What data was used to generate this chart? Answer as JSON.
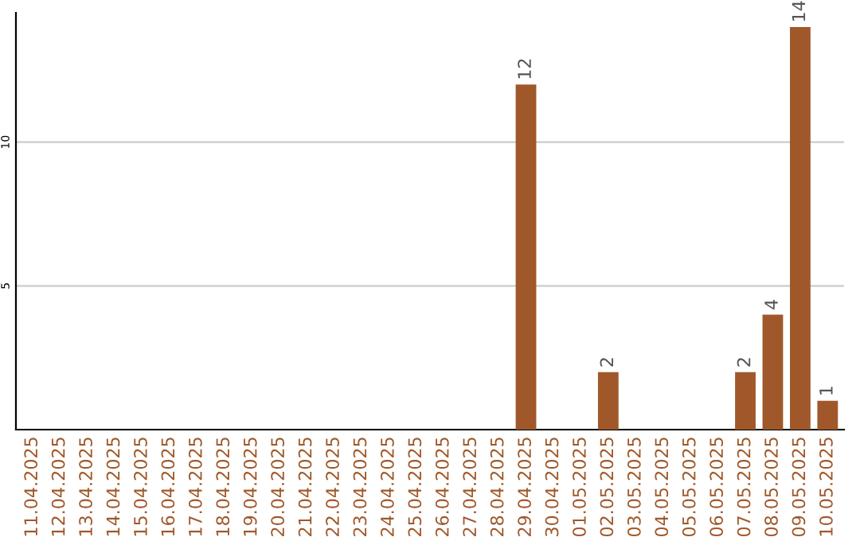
{
  "chart_data": {
    "type": "bar",
    "categories": [
      "11.04.2025",
      "12.04.2025",
      "13.04.2025",
      "14.04.2025",
      "15.04.2025",
      "16.04.2025",
      "17.04.2025",
      "18.04.2025",
      "19.04.2025",
      "20.04.2025",
      "21.04.2025",
      "22.04.2025",
      "23.04.2025",
      "24.04.2025",
      "25.04.2025",
      "26.04.2025",
      "27.04.2025",
      "28.04.2025",
      "29.04.2025",
      "30.04.2025",
      "01.05.2025",
      "02.05.2025",
      "03.05.2025",
      "04.05.2025",
      "05.05.2025",
      "06.05.2025",
      "07.05.2025",
      "08.05.2025",
      "09.05.2025",
      "10.05.2025"
    ],
    "values": [
      0,
      0,
      0,
      0,
      0,
      0,
      0,
      0,
      0,
      0,
      0,
      0,
      0,
      0,
      0,
      0,
      0,
      0,
      12,
      0,
      0,
      2,
      0,
      0,
      0,
      0,
      2,
      4,
      14,
      1
    ],
    "value_labels": [
      null,
      null,
      null,
      null,
      null,
      null,
      null,
      null,
      null,
      null,
      null,
      null,
      null,
      null,
      null,
      null,
      null,
      null,
      "12",
      null,
      null,
      "2",
      null,
      null,
      null,
      null,
      "2",
      "4",
      "14",
      "1"
    ],
    "color": "#a0582a",
    "ylim": [
      0,
      14.5
    ],
    "yticks": [
      5,
      10
    ],
    "grid": "y"
  }
}
